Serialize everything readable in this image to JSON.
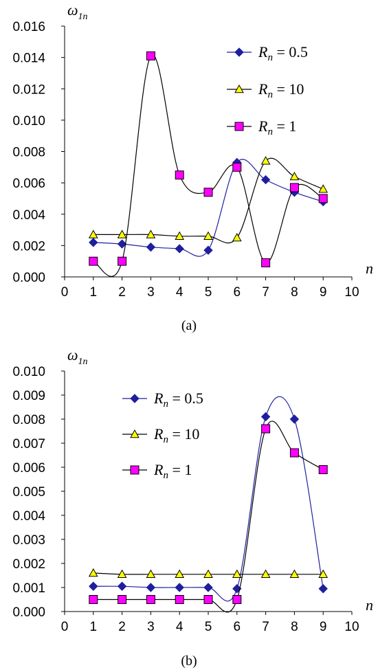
{
  "chart_data": [
    {
      "type": "line",
      "panel_label": "(a)",
      "ylabel_base": "ω",
      "ylabel_sub": "1n",
      "xlabel": "n",
      "xlim": [
        0,
        10
      ],
      "ylim": [
        0,
        0.016
      ],
      "xticks": [
        "0",
        "1",
        "2",
        "3",
        "4",
        "5",
        "6",
        "7",
        "8",
        "9",
        "10"
      ],
      "yticks": [
        "0.000",
        "0.002",
        "0.004",
        "0.006",
        "0.008",
        "0.010",
        "0.012",
        "0.014",
        "0.016"
      ],
      "legend_position": "top-right",
      "x": [
        1,
        2,
        3,
        4,
        5,
        6,
        7,
        8,
        9
      ],
      "series": [
        {
          "name_var": "R",
          "name_sub": "n",
          "name_value": " = 0.5",
          "marker": "diamond",
          "line_color": "#1f1f9e",
          "marker_color": "#1f1f9e",
          "values": [
            0.0022,
            0.0021,
            0.0019,
            0.0018,
            0.0017,
            0.0073,
            0.0062,
            0.0054,
            0.0048
          ]
        },
        {
          "name_var": "R",
          "name_sub": "n",
          "name_value": " = 10",
          "marker": "triangle",
          "line_color": "#000000",
          "marker_color": "#ffff00",
          "values": [
            0.0027,
            0.0027,
            0.0027,
            0.0026,
            0.0026,
            0.0025,
            0.0074,
            0.0064,
            0.0056
          ]
        },
        {
          "name_var": "R",
          "name_sub": "n",
          "name_value": " = 1",
          "marker": "square",
          "line_color": "#000000",
          "marker_color": "#ff00ff",
          "values": [
            0.001,
            0.001,
            0.0141,
            0.0065,
            0.0054,
            0.007,
            0.0009,
            0.0057,
            0.005
          ]
        }
      ]
    },
    {
      "type": "line",
      "panel_label": "(b)",
      "ylabel_base": "ω",
      "ylabel_sub": "1n",
      "xlabel": "n",
      "xlim": [
        0,
        10
      ],
      "ylim": [
        0,
        0.01
      ],
      "xticks": [
        "0",
        "1",
        "2",
        "3",
        "4",
        "5",
        "6",
        "7",
        "8",
        "9",
        "10"
      ],
      "yticks": [
        "0.000",
        "0.001",
        "0.002",
        "0.003",
        "0.004",
        "0.005",
        "0.006",
        "0.007",
        "0.008",
        "0.009",
        "0.010"
      ],
      "legend_position": "top-center",
      "x": [
        1,
        2,
        3,
        4,
        5,
        6,
        7,
        8,
        9
      ],
      "series": [
        {
          "name_var": "R",
          "name_sub": "n",
          "name_value": " = 0.5",
          "marker": "diamond",
          "line_color": "#1f1f9e",
          "marker_color": "#1f1f9e",
          "values": [
            0.00105,
            0.00105,
            0.001,
            0.001,
            0.001,
            0.00095,
            0.0081,
            0.008,
            0.00095
          ]
        },
        {
          "name_var": "R",
          "name_sub": "n",
          "name_value": " = 10",
          "marker": "triangle",
          "line_color": "#000000",
          "marker_color": "#ffff00",
          "values": [
            0.0016,
            0.00155,
            0.00155,
            0.00155,
            0.00155,
            0.00155,
            0.00155,
            0.00155,
            0.00155
          ]
        },
        {
          "name_var": "R",
          "name_sub": "n",
          "name_value": " = 1",
          "marker": "square",
          "line_color": "#000000",
          "marker_color": "#ff00ff",
          "values": [
            0.0005,
            0.0005,
            0.0005,
            0.0005,
            0.0005,
            0.0005,
            0.0076,
            0.0066,
            0.0059
          ]
        }
      ]
    }
  ]
}
